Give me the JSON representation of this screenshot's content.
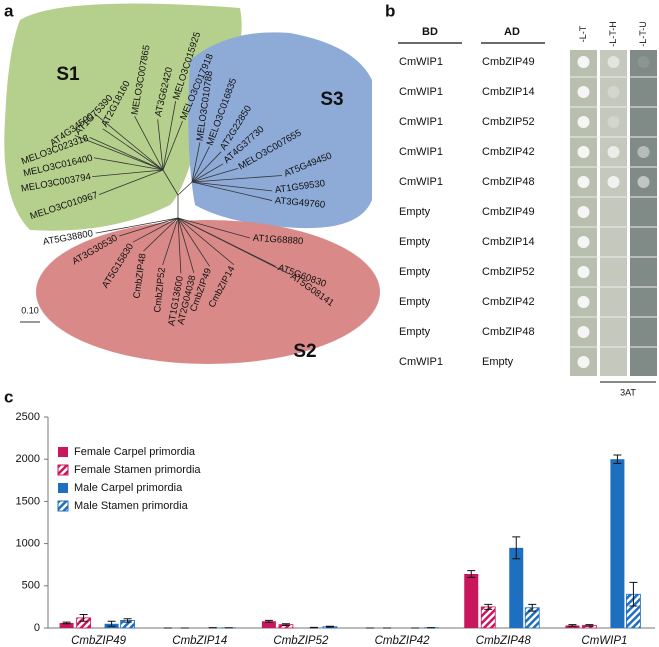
{
  "panel_a": {
    "label": "a",
    "scale_bar": "0.10",
    "clusters": [
      {
        "name": "S1",
        "leaves": [
          "MELO3C017918",
          "MELO3C015925",
          "AT3G62420",
          "MELO3C007865",
          "AT2G18160",
          "AT1G75390",
          "AT4G34590",
          "MELO3C023318",
          "MELO3C016400",
          "MELO3C003794",
          "MELO3C010967"
        ]
      },
      {
        "name": "S3",
        "leaves": [
          "MELO3C010788",
          "MELO3C016835",
          "AT2G22850",
          "AT4G37730",
          "MELO3C007655",
          "AT5G49450",
          "AT1G59530",
          "AT3G49760"
        ]
      },
      {
        "name": "S2",
        "leaves": [
          "AT1G68880",
          "AT5G60830",
          "AT5G08141",
          "CmbZIP14",
          "CmbZIP49",
          "AT2G04038",
          "AT1G13600",
          "CmbZIP52",
          "CmbZIP48",
          "AT5G15830",
          "AT3G30530",
          "AT5G38800"
        ]
      }
    ]
  },
  "panel_b": {
    "label": "b",
    "columns": [
      "BD",
      "AD"
    ],
    "media": [
      "-L-T",
      "-L-T-H",
      "-L-T-U"
    ],
    "footnote": "3AT",
    "rows": [
      [
        "CmWIP1",
        "CmbZIP49"
      ],
      [
        "CmWIP1",
        "CmbZIP14"
      ],
      [
        "CmWIP1",
        "CmbZIP52"
      ],
      [
        "CmWIP1",
        "CmbZIP42"
      ],
      [
        "CmWIP1",
        "CmbZIP48"
      ],
      [
        "Empty",
        "CmbZIP49"
      ],
      [
        "Empty",
        "CmbZIP14"
      ],
      [
        "Empty",
        "CmbZIP52"
      ],
      [
        "Empty",
        "CmbZIP42"
      ],
      [
        "Empty",
        "CmbZIP48"
      ],
      [
        "CmWIP1",
        "Empty"
      ]
    ]
  },
  "chart_data": {
    "type": "bar",
    "panel_label": "c",
    "categories": [
      "CmbZIP49",
      "CmbZIP14",
      "CmbZIP52",
      "CmbZIP42",
      "CmbZIP48",
      "CmWIP1"
    ],
    "series": [
      {
        "name": "Female Carpel primordia",
        "color": "#c8175d",
        "pattern": "solid",
        "values": [
          60,
          0,
          80,
          0,
          640,
          30
        ],
        "errors": [
          10,
          0,
          10,
          0,
          40,
          10
        ]
      },
      {
        "name": "Female Stamen primordia",
        "color": "#c8175d",
        "pattern": "hatch",
        "values": [
          120,
          0,
          40,
          0,
          250,
          30
        ],
        "errors": [
          40,
          0,
          10,
          0,
          30,
          10
        ]
      },
      {
        "name": "Male Carpel primordia",
        "color": "#1e6fbf",
        "pattern": "solid",
        "values": [
          50,
          3,
          5,
          0,
          950,
          2000
        ],
        "errors": [
          30,
          1,
          3,
          0,
          130,
          50
        ]
      },
      {
        "name": "Male Stamen primordia",
        "color": "#1e6fbf",
        "pattern": "hatch",
        "values": [
          90,
          2,
          15,
          3,
          240,
          400
        ],
        "errors": [
          20,
          1,
          5,
          1,
          40,
          140
        ]
      }
    ],
    "ylim": [
      0,
      2500
    ],
    "yticks": [
      0,
      500,
      1000,
      1500,
      2000,
      2500
    ],
    "grid": false,
    "legend": "top-left"
  }
}
